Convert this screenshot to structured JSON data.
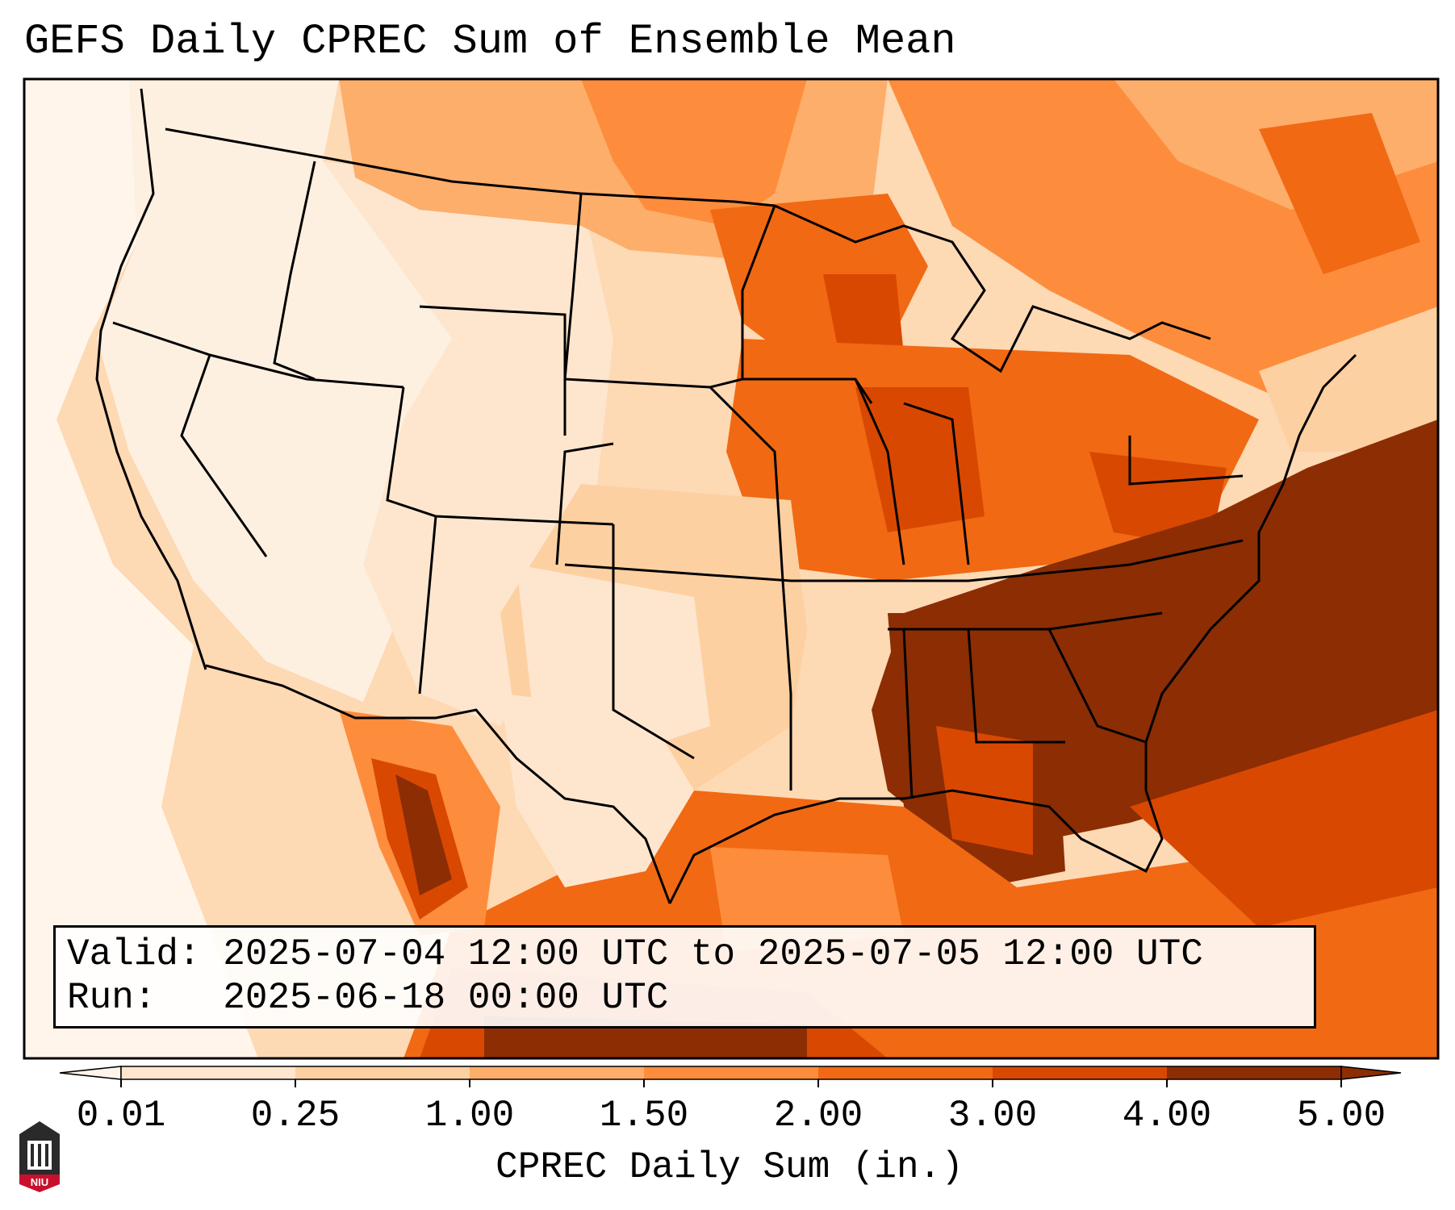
{
  "title": "GEFS Daily CPREC Sum of Ensemble Mean",
  "info": {
    "valid_line": "Valid: 2025-07-04 12:00 UTC to 2025-07-05 12:00 UTC",
    "run_line": "Run:   2025-06-18 00:00 UTC"
  },
  "colorbar": {
    "label": "CPREC Daily Sum (in.)",
    "ticks": [
      "0.01",
      "0.25",
      "1.00",
      "1.50",
      "2.00",
      "3.00",
      "4.00",
      "5.00"
    ],
    "colors": [
      "#fff5eb",
      "#fee6ce",
      "#fdd0a2",
      "#fdae6b",
      "#fd8d3c",
      "#f16913",
      "#d94801",
      "#8c2d04"
    ]
  },
  "logo": {
    "text": "NIU",
    "colors": {
      "dark": "#2a2a2a",
      "red": "#c8102e"
    }
  },
  "map": {
    "region": "Continental United States",
    "field": "GEFS ensemble mean daily convective precipitation"
  }
}
